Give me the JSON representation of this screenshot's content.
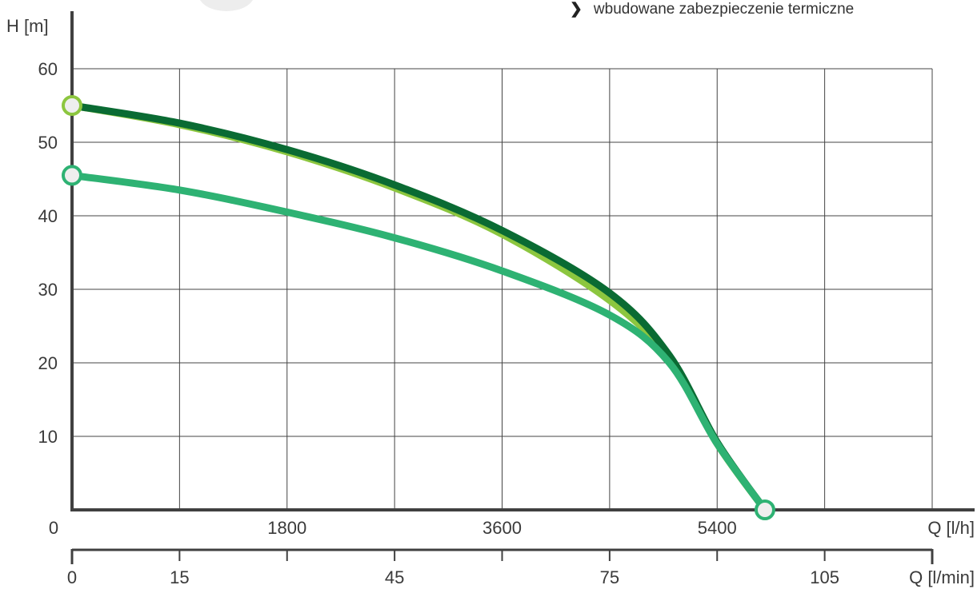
{
  "note": {
    "bullet_icon": "chevron-right-icon",
    "text": "wbudowane zabezpieczenie termiczne"
  },
  "chart_data": {
    "type": "line",
    "ylabel": "H [m]",
    "ylim": [
      0,
      60
    ],
    "yticks": [
      0,
      10,
      20,
      30,
      40,
      50,
      60
    ],
    "origin_label": "0",
    "xlabel": "Q [l/h]",
    "xlim": [
      0,
      7200
    ],
    "xticks": [
      {
        "value": 1800,
        "label": "1800"
      },
      {
        "value": 3600,
        "label": "3600"
      },
      {
        "value": 5400,
        "label": "5400"
      }
    ],
    "x2label": "Q [l/min]",
    "x2ticks": [
      {
        "value": 0,
        "label": "0"
      },
      {
        "value": 15,
        "label": "15"
      },
      {
        "value": 45,
        "label": "45"
      },
      {
        "value": 75,
        "label": "75"
      },
      {
        "value": 105,
        "label": "105"
      }
    ],
    "x2_minor_ticks": [
      30,
      60,
      90,
      120
    ],
    "x2lim": [
      0,
      120
    ],
    "grid": true,
    "colors": {
      "grid": "#444444",
      "axis": "#404040",
      "dark_green": "#0a6b33",
      "light_green": "#8cc63f",
      "medium_green": "#2eb273",
      "marker_fill": "#eeeeee"
    },
    "series": [
      {
        "color": "#8cc63f",
        "points": [
          [
            0,
            55
          ],
          [
            900,
            52.4
          ],
          [
            1800,
            48.7
          ],
          [
            2700,
            43.8
          ],
          [
            3600,
            37.5
          ],
          [
            4500,
            28.5
          ],
          [
            5000,
            20.5
          ],
          [
            5400,
            9
          ],
          [
            5800,
            0
          ]
        ],
        "markers": [
          [
            0,
            55
          ]
        ]
      },
      {
        "color": "#0a6b33",
        "points": [
          [
            0,
            55
          ],
          [
            900,
            52.6
          ],
          [
            1800,
            49
          ],
          [
            2700,
            44.2
          ],
          [
            3600,
            38
          ],
          [
            4500,
            29.5
          ],
          [
            5000,
            21
          ],
          [
            5400,
            9.2
          ],
          [
            5800,
            0
          ]
        ],
        "markers": []
      },
      {
        "color": "#2eb273",
        "points": [
          [
            0,
            45.5
          ],
          [
            900,
            43.5
          ],
          [
            1800,
            40.5
          ],
          [
            2700,
            37
          ],
          [
            3600,
            32.5
          ],
          [
            4500,
            26.5
          ],
          [
            5000,
            20
          ],
          [
            5400,
            9
          ],
          [
            5800,
            0
          ]
        ],
        "markers": [
          [
            0,
            45.5
          ],
          [
            5800,
            0
          ]
        ]
      }
    ]
  }
}
